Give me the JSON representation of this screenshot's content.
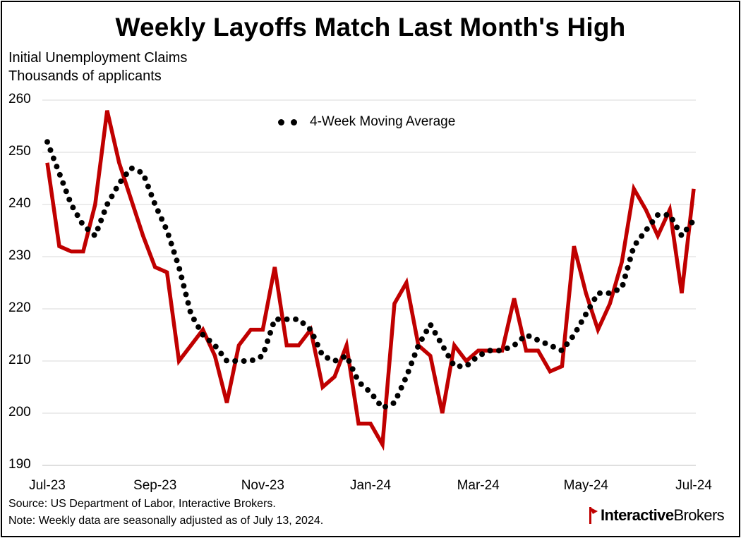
{
  "colors": {
    "claims_line": "#c00000",
    "moving_average": "#000000",
    "gridline": "#d9d9d9"
  },
  "logo": {
    "part1": "Interactive",
    "part2": "Brokers",
    "icon": "ib-flag-icon"
  },
  "chart_data": {
    "type": "line",
    "title": "Weekly Layoffs Match Last Month's High",
    "subtitle": [
      "Initial Unemployment Claims",
      "Thousands of applicants"
    ],
    "xlabel": "",
    "ylabel": "",
    "ylim": [
      190,
      260
    ],
    "yticks": [
      190,
      200,
      210,
      220,
      230,
      240,
      250,
      260
    ],
    "xticks": [
      {
        "label": "Jul-23",
        "index": 0
      },
      {
        "label": "Sep-23",
        "index": 9
      },
      {
        "label": "Nov-23",
        "index": 18
      },
      {
        "label": "Jan-24",
        "index": 27
      },
      {
        "label": "Mar-24",
        "index": 36
      },
      {
        "label": "May-24",
        "index": 45
      },
      {
        "label": "Jul-24",
        "index": 54
      }
    ],
    "grid": "horizontal",
    "legend_position": "top-center",
    "series": [
      {
        "values": [
          248,
          232,
          231,
          231,
          240,
          258,
          248,
          241,
          234,
          228,
          227,
          210,
          213,
          216,
          211,
          202,
          213,
          216,
          216,
          228,
          213,
          213,
          216,
          205,
          207,
          213,
          198,
          198,
          194,
          221,
          225,
          213,
          211,
          200,
          213,
          210,
          212,
          212,
          212,
          222,
          212,
          212,
          208,
          209,
          232,
          223,
          216,
          221,
          229,
          243,
          239,
          234,
          239,
          223,
          243
        ]
      },
      {
        "name": "4-Week Moving Average",
        "values": [
          252,
          246,
          240,
          236,
          234,
          240,
          244,
          247,
          246,
          240,
          235,
          228,
          219,
          215,
          213,
          210,
          210,
          210,
          211,
          218,
          218,
          218,
          216,
          211,
          210,
          211,
          206,
          204,
          201,
          202,
          207,
          213,
          217,
          213,
          209,
          209,
          211,
          212,
          212,
          213,
          215,
          214,
          213,
          212,
          215,
          219,
          223,
          223,
          224,
          232,
          235,
          238,
          238,
          234,
          237
        ]
      }
    ]
  },
  "footnotes": {
    "source": "Source: US Department of Labor, Interactive Brokers.",
    "note": "Note: Weekly data are seasonally adjusted as of July 13, 2024."
  }
}
